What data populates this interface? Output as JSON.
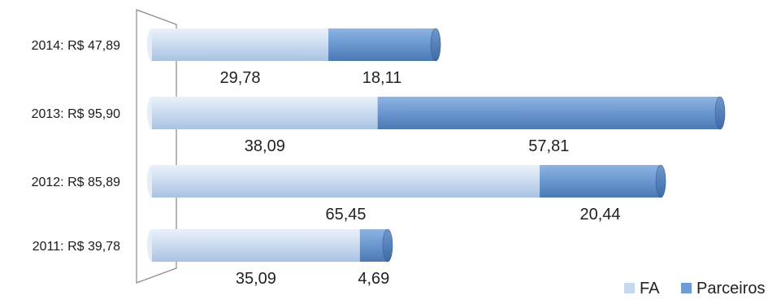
{
  "chart_data": {
    "type": "bar",
    "orientation": "horizontal",
    "stacked": true,
    "style": "3d-cylinder",
    "categories": [
      "2014: R$ 47,89",
      "2013: R$ 95,90",
      "2012: R$ 85,89",
      "2011: R$ 39,78"
    ],
    "series": [
      {
        "name": "FA",
        "values": [
          29.78,
          38.09,
          65.45,
          35.09
        ],
        "labels": [
          "29,78",
          "38,09",
          "65,45",
          "35,09"
        ],
        "color": "#c6d8ee"
      },
      {
        "name": "Parceiros",
        "values": [
          18.11,
          57.81,
          20.44,
          4.69
        ],
        "labels": [
          "18,11",
          "57,81",
          "20,44",
          "4,69"
        ],
        "color": "#6e9bd2"
      }
    ],
    "xlim": [
      0,
      100
    ],
    "grid": false,
    "legend": "bottom-right"
  }
}
